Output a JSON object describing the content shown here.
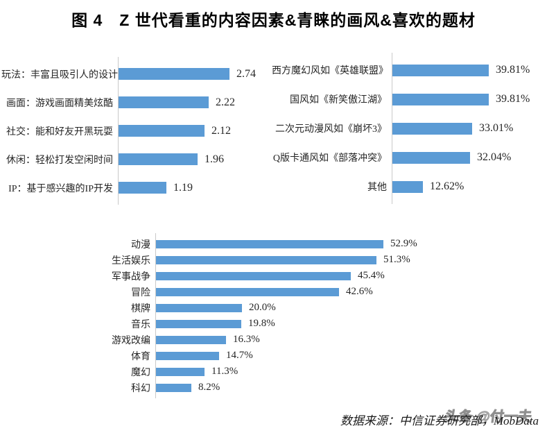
{
  "page": {
    "title": "图 4　Z 世代看重的内容因素&青睐的画风&喜欢的题材",
    "source_note": "数据来源：中信证券研究部，MobData",
    "watermark": "头条 @付一夫"
  },
  "colors": {
    "bar": "#5B9BD5",
    "axis_line": "#C9C9C9",
    "title_text": "#000000",
    "label_text": "#262626"
  },
  "chart_data": [
    {
      "type": "bar",
      "orientation": "horizontal",
      "name": "content-factors",
      "categories": [
        "玩法：丰富且吸引人的设计",
        "画面：游戏画面精美炫酷",
        "社交：能和好友开黑玩耍",
        "休闲：轻松打发空闲时间",
        "IP：基于感兴趣的IP开发"
      ],
      "values": [
        2.74,
        2.22,
        2.12,
        1.96,
        1.19
      ],
      "value_labels": [
        "2.74",
        "2.22",
        "2.12",
        "1.96",
        "1.19"
      ],
      "xlim": [
        0,
        3.3
      ],
      "grid": false,
      "value_axis_visible": false
    },
    {
      "type": "bar",
      "orientation": "horizontal",
      "name": "art-styles",
      "categories": [
        "西方魔幻风如《英雄联盟》",
        "国风如《新笑傲江湖》",
        "二次元动漫风如《崩坏3》",
        "Q版卡通风如《部落冲突》",
        "其他"
      ],
      "values": [
        39.81,
        39.81,
        33.01,
        32.04,
        12.62
      ],
      "value_labels": [
        "39.81%",
        "39.81%",
        "33.01%",
        "32.04%",
        "12.62%"
      ],
      "xlim": [
        0,
        50
      ],
      "grid": false,
      "value_axis_visible": false
    },
    {
      "type": "bar",
      "orientation": "horizontal",
      "name": "favorite-themes",
      "categories": [
        "动漫",
        "生活娱乐",
        "军事战争",
        "冒险",
        "棋牌",
        "音乐",
        "游戏改编",
        "体育",
        "魔幻",
        "科幻"
      ],
      "values": [
        52.9,
        51.3,
        45.4,
        42.6,
        20.0,
        19.8,
        16.3,
        14.7,
        11.3,
        8.2
      ],
      "value_labels": [
        "52.9%",
        "51.3%",
        "45.4%",
        "42.6%",
        "20.0%",
        "19.8%",
        "16.3%",
        "14.7%",
        "11.3%",
        "8.2%"
      ],
      "xlim": [
        0,
        60
      ],
      "grid": false,
      "value_axis_visible": false
    }
  ]
}
